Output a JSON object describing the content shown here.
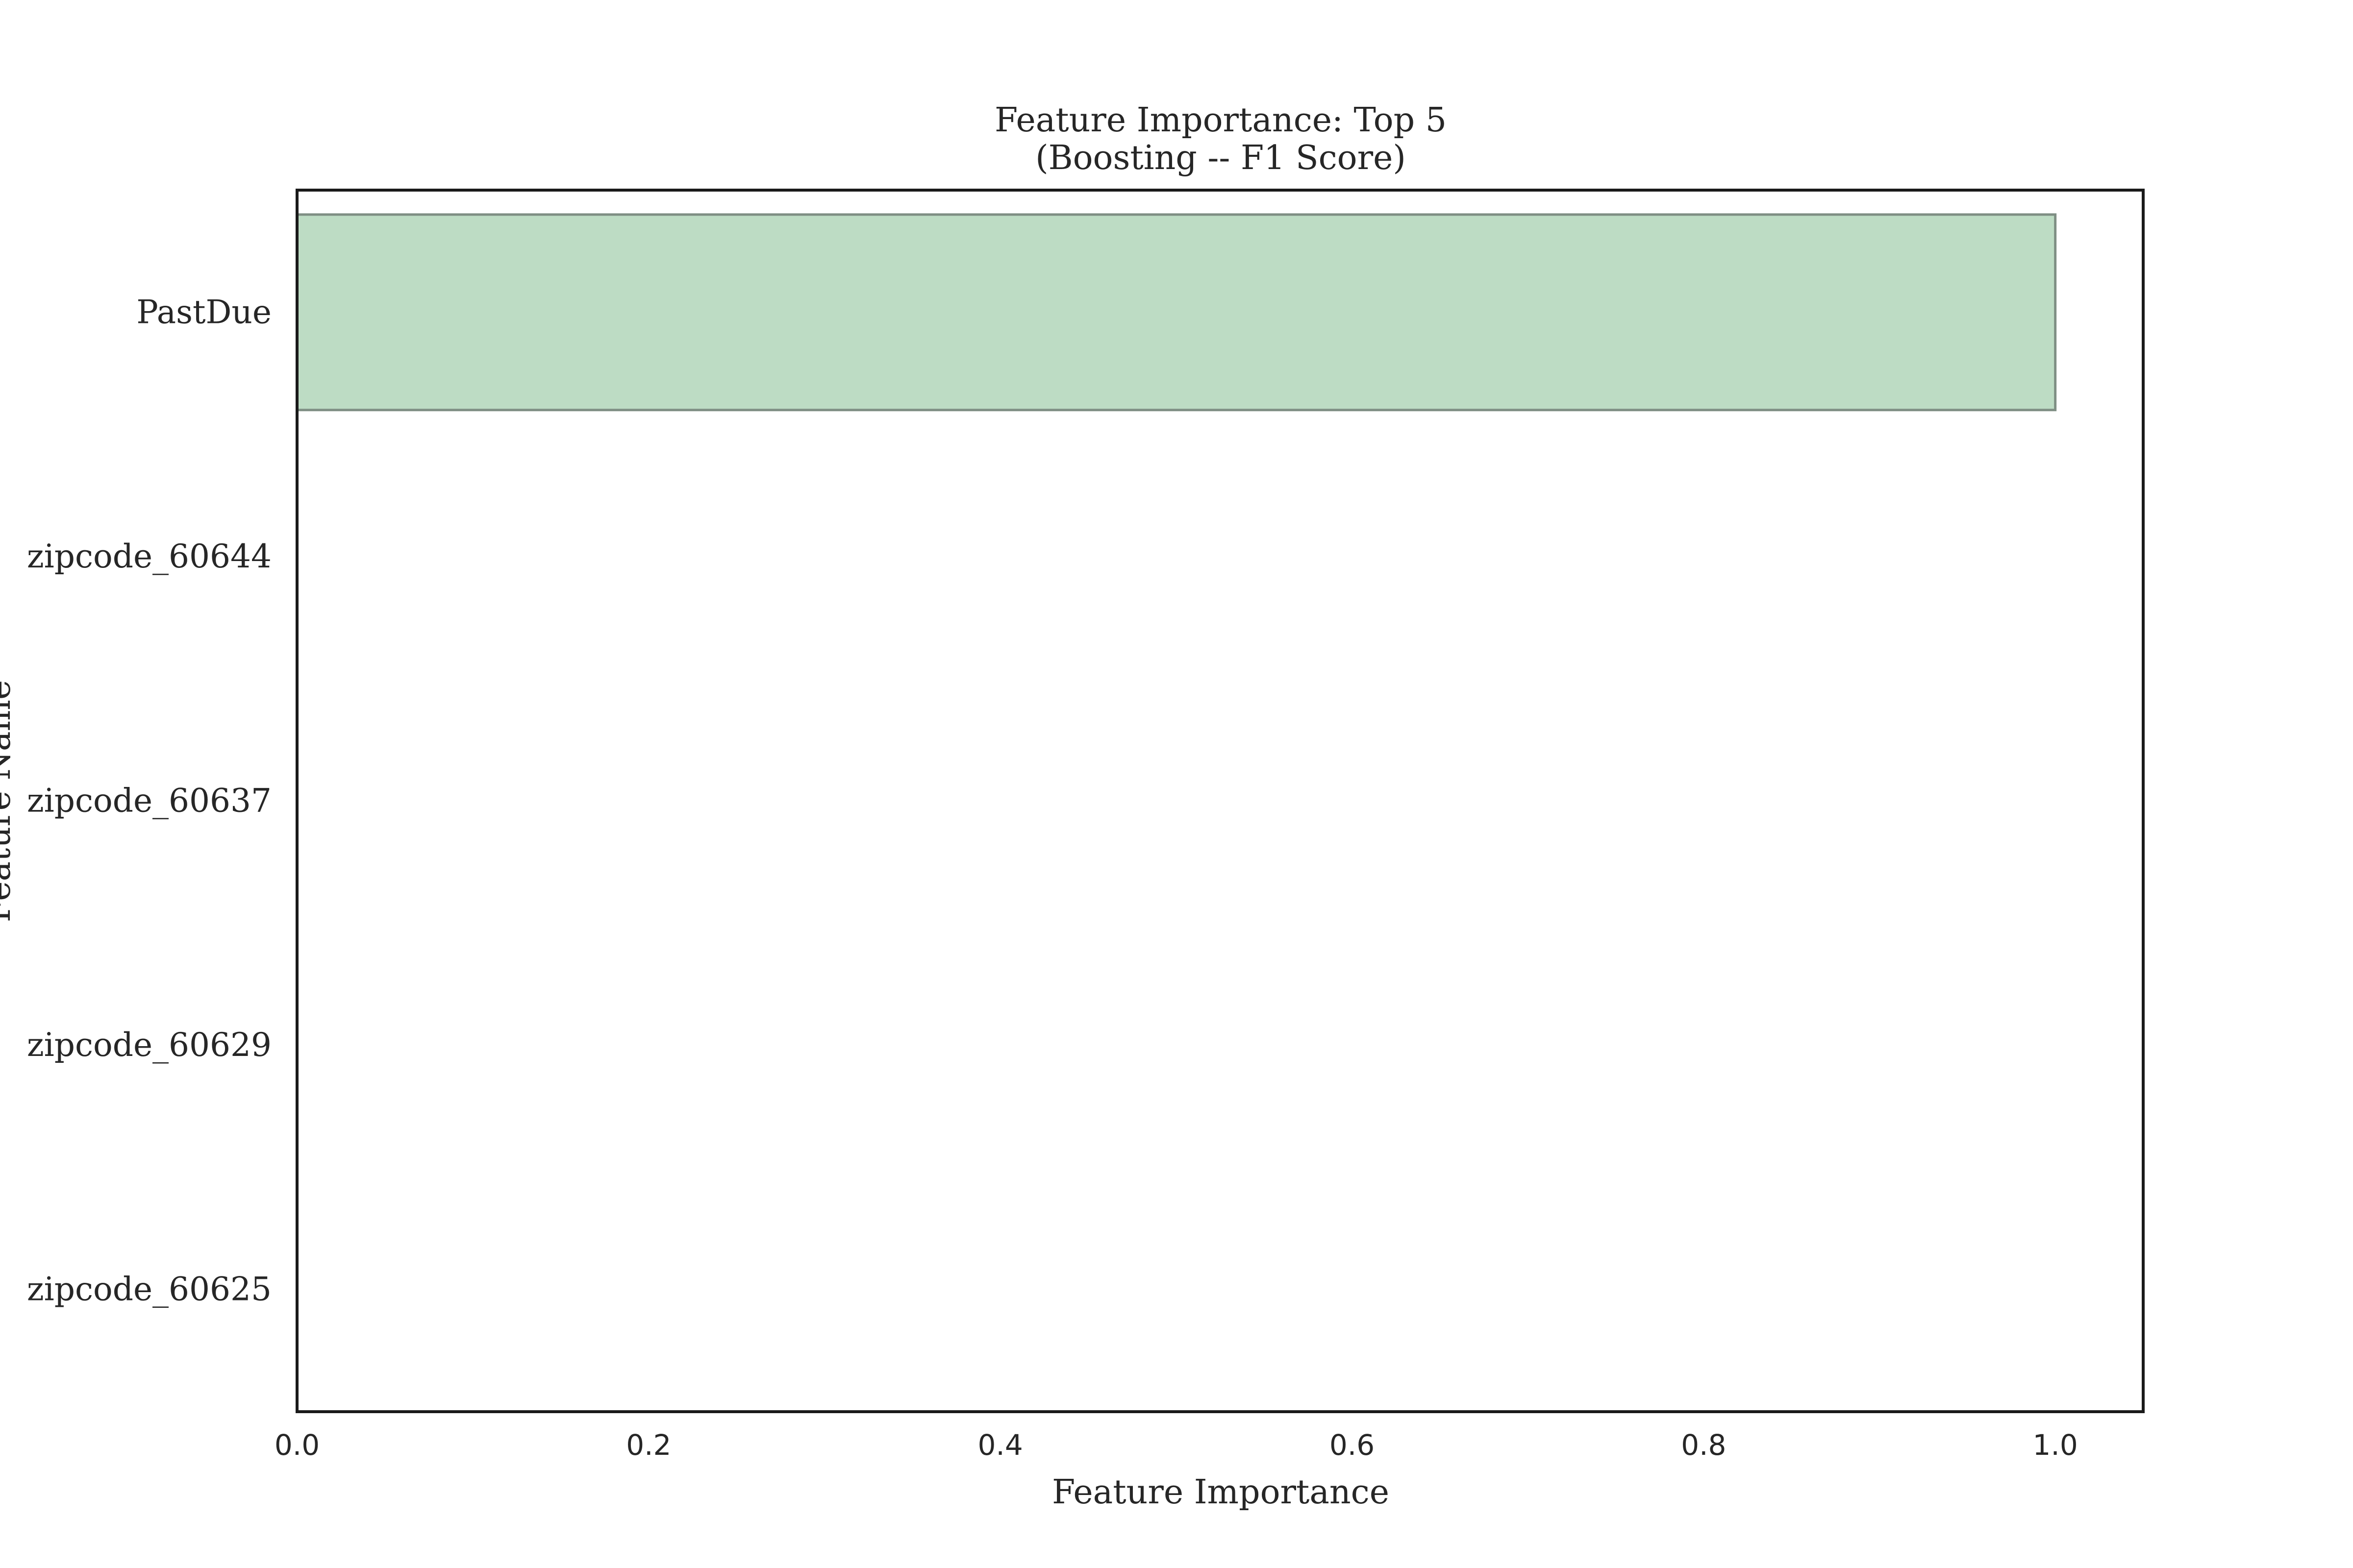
{
  "chart_data": {
    "type": "bar",
    "orientation": "horizontal",
    "title": "Feature Importance: Top 5",
    "subtitle": "(Boosting -- F1 Score)",
    "xlabel": "Feature Importance",
    "ylabel": "Feature Name",
    "categories": [
      "PastDue",
      "zipcode_60644",
      "zipcode_60637",
      "zipcode_60629",
      "zipcode_60625"
    ],
    "values": [
      1.0,
      0.0,
      0.0,
      0.0,
      0.0
    ],
    "xlim": [
      0.0,
      1.05
    ],
    "xticks": [
      "0.0",
      "0.2",
      "0.4",
      "0.6",
      "0.8",
      "1.0"
    ],
    "grid": false,
    "legend": "none",
    "colors": {
      "bar_fill": "#bddcc4",
      "bar_edge": "#7f8f84",
      "frame": "#1a1a1a",
      "text": "#262626"
    }
  }
}
